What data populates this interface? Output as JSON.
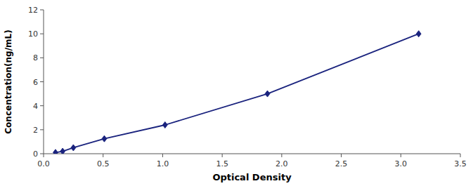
{
  "chart_data": {
    "type": "line",
    "x": [
      0.1,
      0.16,
      0.25,
      0.51,
      1.02,
      1.88,
      3.15
    ],
    "values": [
      0.1,
      0.2,
      0.5,
      1.25,
      2.4,
      5.0,
      10.0
    ],
    "color": "#1a237e",
    "marker": "diamond",
    "xlabel": "Optical Density",
    "ylabel": "Concentration(ng/mL)",
    "xlim": [
      0.0,
      3.5
    ],
    "ylim": [
      0,
      12
    ],
    "xticks": [
      {
        "value": 0,
        "label": "0.0"
      },
      0.5,
      {
        "value": 1,
        "label": "1.0"
      },
      1.5,
      {
        "value": 2,
        "label": "2.0"
      },
      2.5,
      {
        "value": 3,
        "label": "3.0"
      },
      3.5
    ],
    "yticks": [
      0,
      2,
      4,
      6,
      8,
      10,
      12
    ],
    "grid": false
  }
}
